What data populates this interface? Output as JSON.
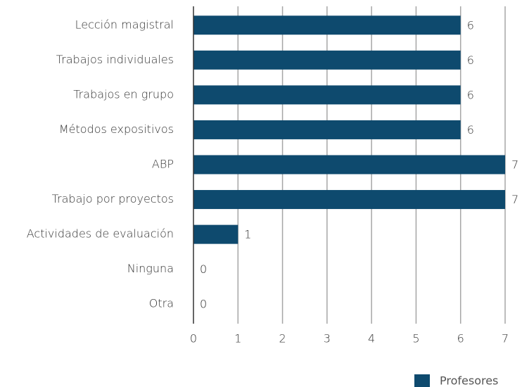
{
  "chart_data": {
    "type": "bar",
    "orientation": "horizontal",
    "categories": [
      "Lección magistral",
      "Trabajos individuales",
      "Trabajos en grupo",
      "Métodos expositivos",
      "ABP",
      "Trabajo por proyectos",
      "Actividades de evaluación",
      "Ninguna",
      "Otra"
    ],
    "series": [
      {
        "name": "Profesores",
        "color": "#0e4a6e",
        "values": [
          6,
          6,
          6,
          6,
          7,
          7,
          1,
          0,
          0
        ]
      }
    ],
    "xlim": [
      0,
      7
    ],
    "xticks": [
      0,
      1,
      2,
      3,
      4,
      5,
      6,
      7
    ],
    "grid": true,
    "legend": "bottom-right"
  }
}
